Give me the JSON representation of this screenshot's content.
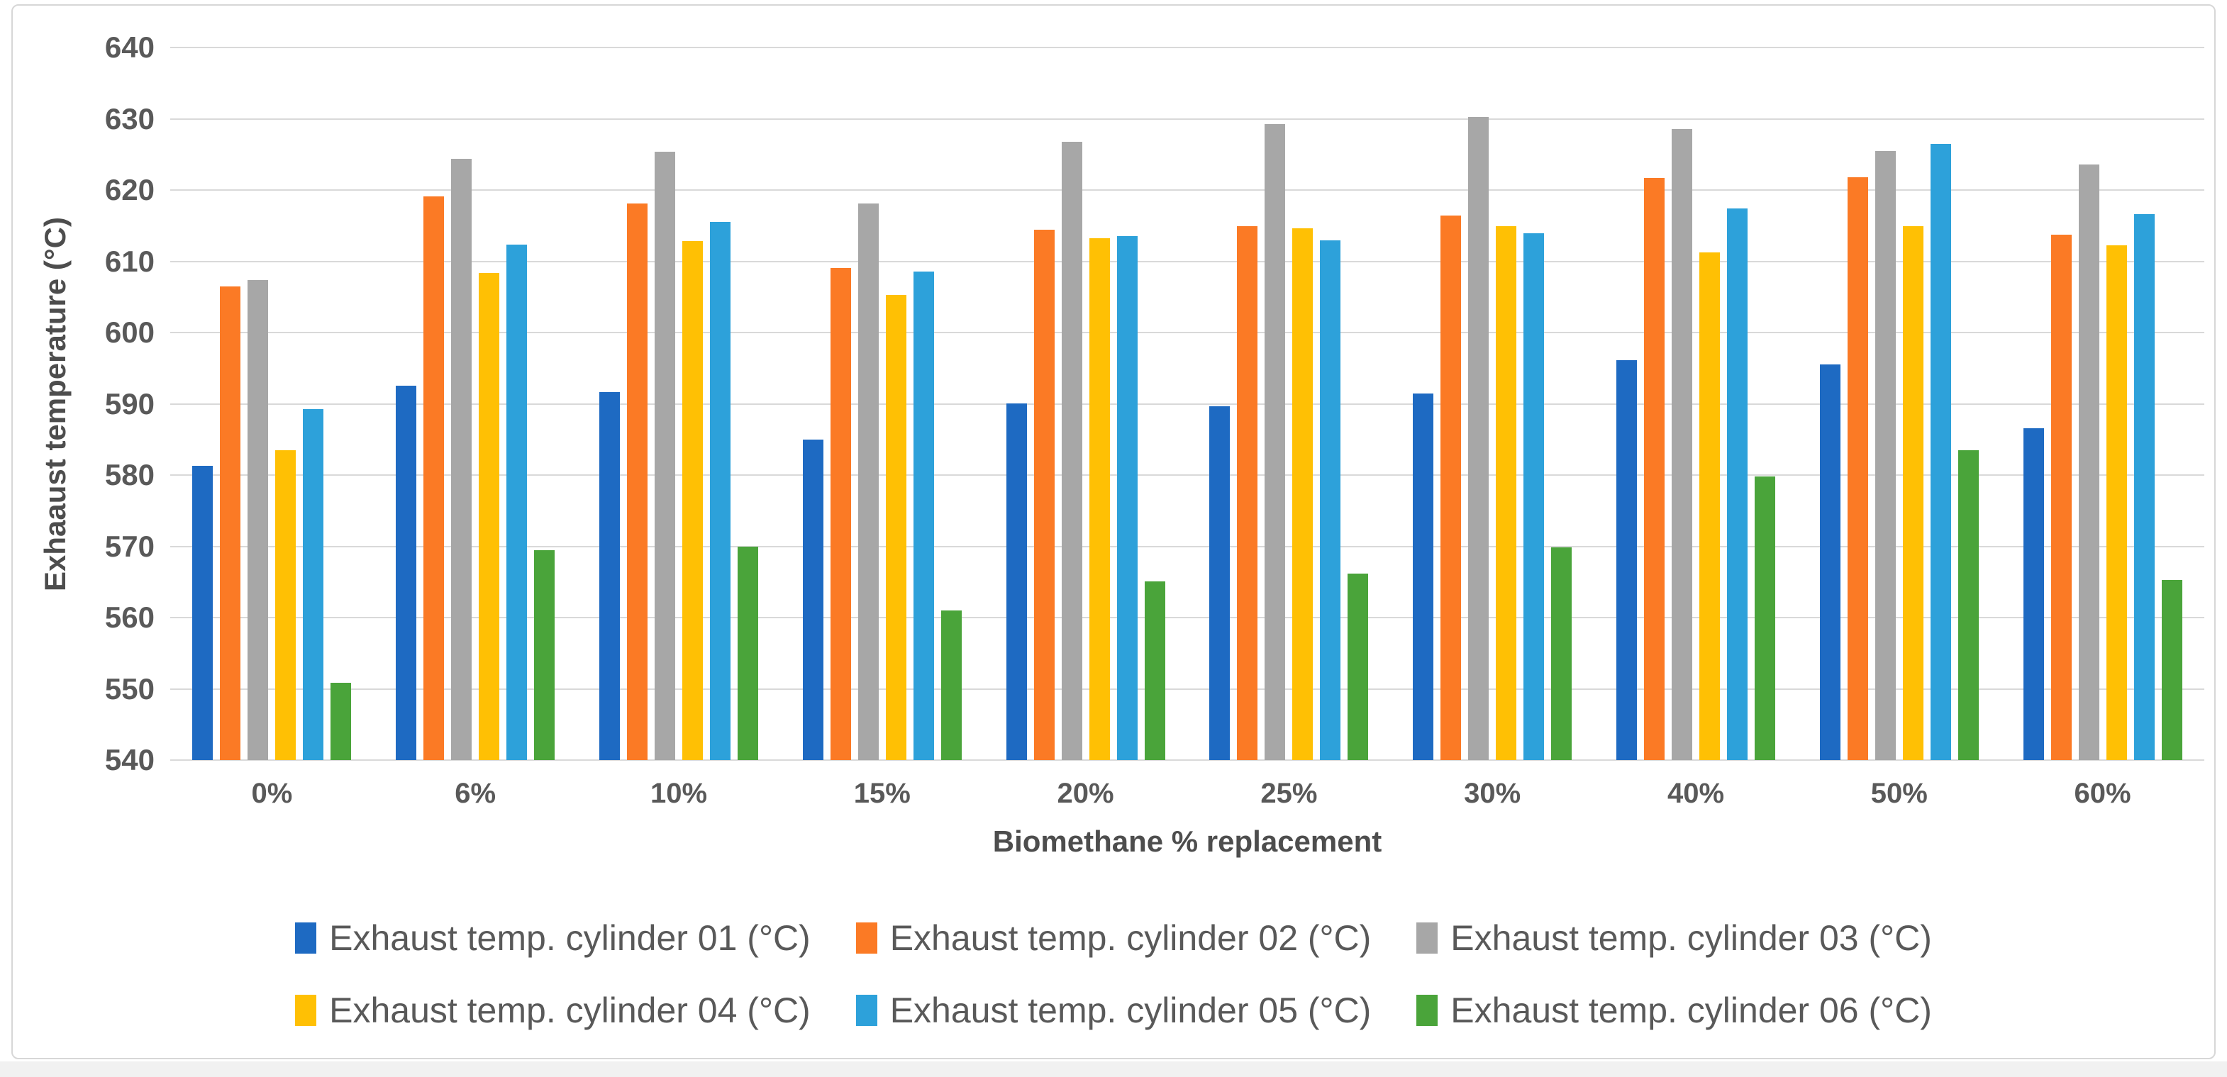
{
  "chart_data": {
    "type": "bar",
    "title": "",
    "xlabel": "Biomethane % replacement",
    "ylabel": "Exhaaust temperature (°C)",
    "ylim": [
      540,
      640
    ],
    "yticks": [
      540,
      550,
      560,
      570,
      580,
      590,
      600,
      610,
      620,
      630,
      640
    ],
    "grid": true,
    "legend_position": "bottom",
    "categories": [
      "0%",
      "6%",
      "10%",
      "15%",
      "20%",
      "25%",
      "30%",
      "40%",
      "50%",
      "60%"
    ],
    "series": [
      {
        "name": "Exhaust temp. cylinder 01 (°C)",
        "color": "#1E6AC2",
        "values": [
          581.3,
          592.5,
          591.6,
          585.0,
          590.1,
          589.7,
          591.4,
          596.1,
          595.5,
          586.6
        ]
      },
      {
        "name": "Exhaust temp. cylinder 02 (°C)",
        "color": "#FB7A25",
        "values": [
          606.5,
          619.1,
          618.1,
          609.1,
          614.4,
          614.9,
          616.4,
          621.7,
          621.8,
          613.7
        ]
      },
      {
        "name": "Exhaust temp. cylinder 03 (°C)",
        "color": "#A7A7A7",
        "values": [
          607.4,
          624.4,
          625.4,
          618.1,
          626.8,
          629.3,
          630.3,
          628.6,
          625.5,
          623.6
        ]
      },
      {
        "name": "Exhaust temp. cylinder 04 (°C)",
        "color": "#FFC004",
        "values": [
          583.5,
          608.4,
          612.8,
          605.3,
          613.2,
          614.6,
          614.9,
          611.2,
          614.9,
          612.2
        ]
      },
      {
        "name": "Exhaust temp. cylinder 05 (°C)",
        "color": "#2DA1DA",
        "values": [
          589.3,
          612.3,
          615.5,
          608.6,
          613.5,
          612.9,
          613.9,
          617.4,
          626.5,
          616.6
        ]
      },
      {
        "name": "Exhaust temp. cylinder 06 (°C)",
        "color": "#4AA43A",
        "values": [
          550.8,
          569.5,
          570.0,
          561.0,
          565.1,
          566.2,
          569.9,
          579.8,
          583.5,
          565.3
        ]
      }
    ]
  }
}
